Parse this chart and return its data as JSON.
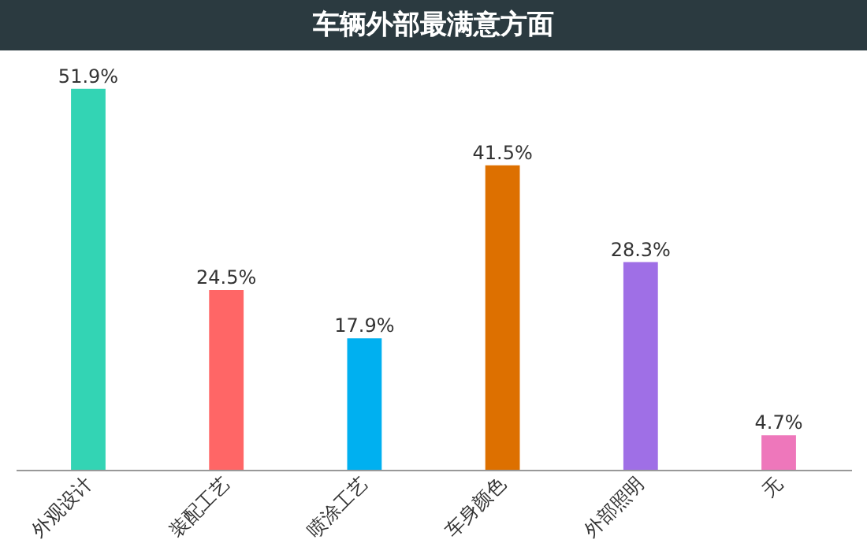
{
  "chart_data": {
    "type": "bar",
    "title": "车辆外部最满意方面",
    "categories": [
      "外观设计",
      "装配工艺",
      "喷涂工艺",
      "车身颜色",
      "外部照明",
      "无"
    ],
    "values": [
      51.9,
      24.5,
      17.9,
      41.5,
      28.3,
      4.7
    ],
    "value_labels": [
      "51.9%",
      "24.5%",
      "17.9%",
      "41.5%",
      "28.3%",
      "4.7%"
    ],
    "colors": [
      "#33d4b4",
      "#ff6666",
      "#00b0f0",
      "#dd7000",
      "#9f6fe6",
      "#ee77bb"
    ]
  }
}
